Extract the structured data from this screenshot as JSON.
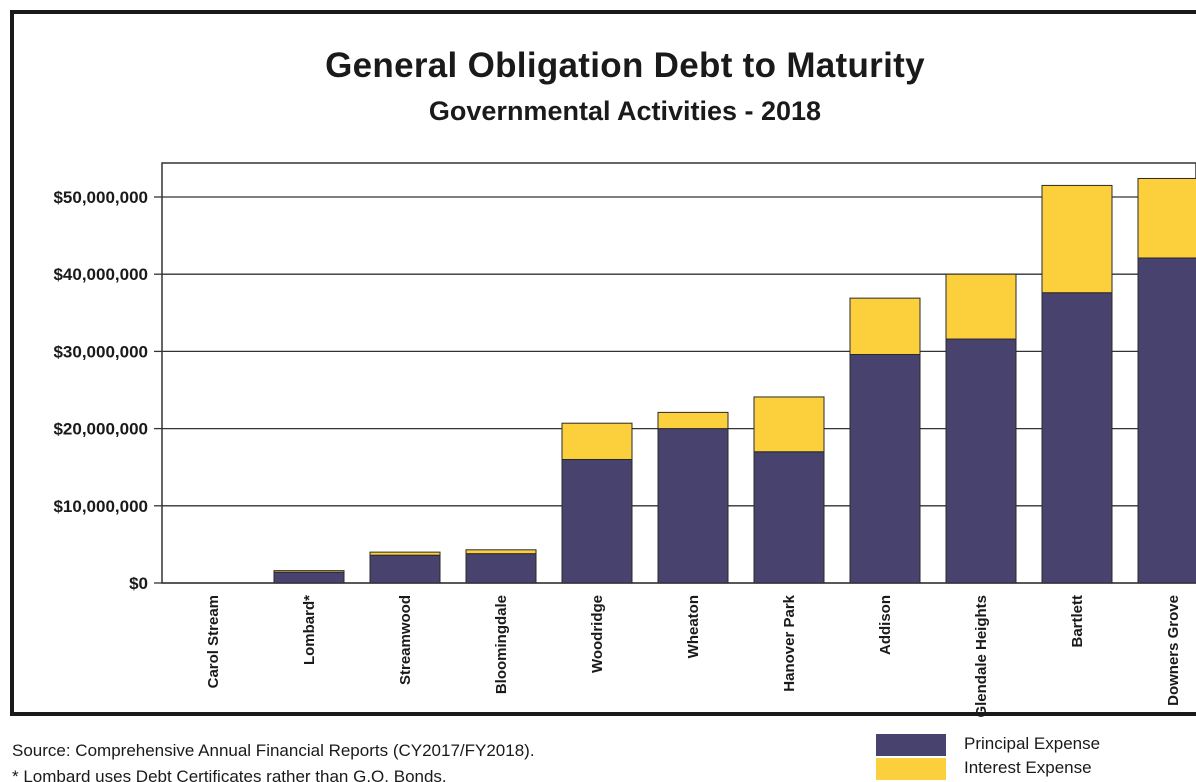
{
  "chart_data": {
    "type": "bar",
    "stacked": true,
    "title": "General Obligation Debt to Maturity",
    "subtitle": "Governmental Activities - 2018",
    "categories": [
      "Carol Stream",
      "Lombard*",
      "Streamwood",
      "Bloomingdale",
      "Woodridge",
      "Wheaton",
      "Hanover Park",
      "Addison",
      "Glendale Heights",
      "Bartlett",
      "Downers Grove"
    ],
    "series": [
      {
        "name": "Principal Expense",
        "color": "#48426e",
        "values": [
          0,
          1400000,
          3600000,
          3800000,
          16000000,
          20000000,
          17000000,
          29600000,
          31600000,
          37600000,
          42100000
        ]
      },
      {
        "name": "Interest Expense",
        "color": "#fccf3c",
        "values": [
          0,
          200000,
          400000,
          500000,
          4700000,
          2100000,
          7100000,
          7300000,
          8400000,
          13900000,
          10300000
        ]
      }
    ],
    "yticks": [
      "$0",
      "$10,000,000",
      "$20,000,000",
      "$30,000,000",
      "$40,000,000",
      "$50,000,000"
    ],
    "ylim": [
      0,
      55000000
    ],
    "grid": true,
    "legend_position": "bottom-right"
  },
  "footnotes": [
    "Source:  Comprehensive Annual Financial Reports (CY2017/FY2018).",
    "* Lombard uses Debt Certificates rather than G.O. Bonds."
  ]
}
